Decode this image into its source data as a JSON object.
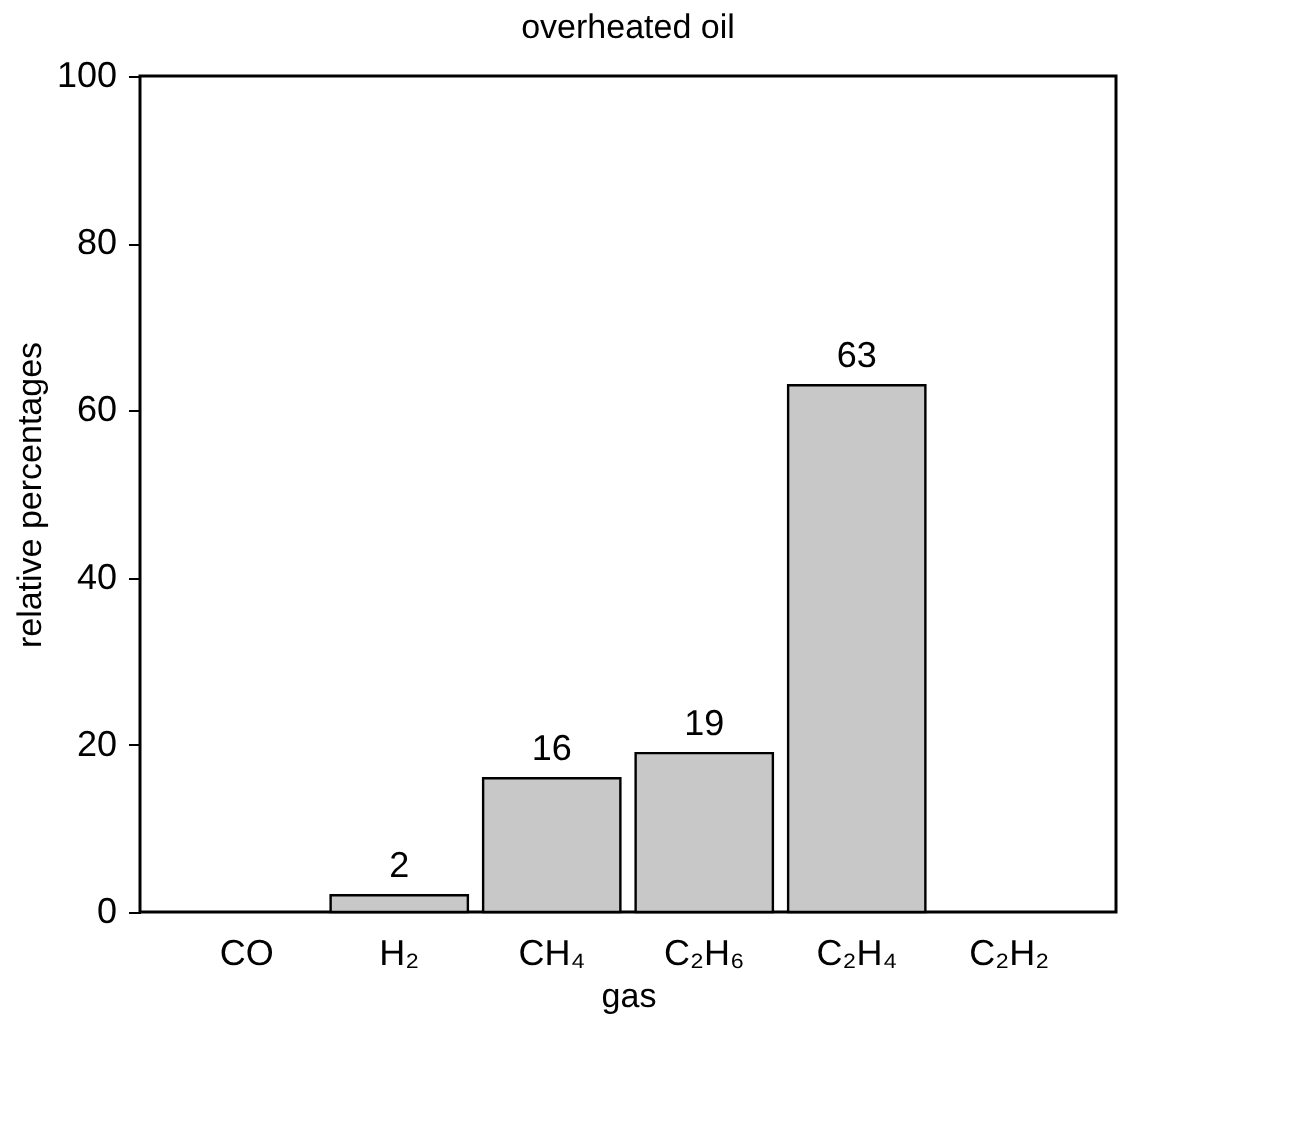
{
  "chart_data": {
    "type": "bar",
    "title": "overheated oil",
    "xlabel": "gas",
    "ylabel": "relative percentages",
    "categories": [
      "CO",
      "H₂",
      "CH₄",
      "C₂H₆",
      "C₂H₄",
      "C₂H₂"
    ],
    "values": [
      0,
      2,
      16,
      19,
      63,
      0
    ],
    "value_labels": [
      null,
      "2",
      "16",
      "19",
      "63",
      null
    ],
    "color": "#c8c8c8",
    "ylim": [
      0,
      100
    ],
    "yticks": [
      0,
      20,
      40,
      60,
      80,
      100
    ],
    "grid": false
  }
}
